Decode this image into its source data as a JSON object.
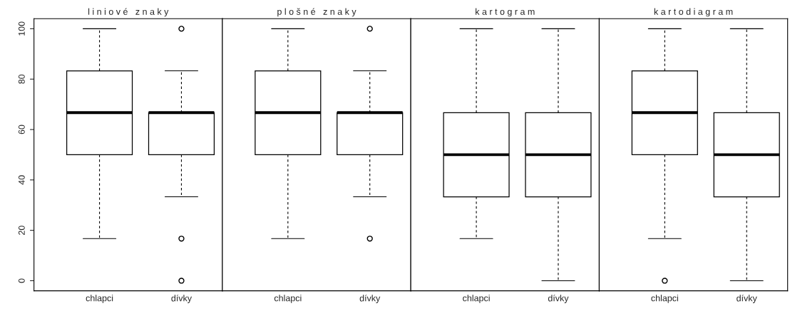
{
  "chart_data": [
    {
      "type": "box",
      "title": "l i n i o v é   z n a k y",
      "categories": [
        "chlapci",
        "dívky"
      ],
      "ylim": [
        -4,
        104
      ],
      "yticks": [
        0,
        20,
        40,
        60,
        80,
        100
      ],
      "boxes": [
        {
          "low": 16.7,
          "q1": 50,
          "median": 66.7,
          "q3": 83.3,
          "high": 100
        },
        {
          "low": 33.3,
          "q1": 50,
          "median": 66.7,
          "q3": 66.7,
          "high": 83.3,
          "outliers": [
            100,
            16.7,
            0
          ]
        }
      ]
    },
    {
      "type": "box",
      "title": "p l o š n é   z n a k y",
      "categories": [
        "chlapci",
        "dívky"
      ],
      "ylim": [
        -4,
        104
      ],
      "yticks": [
        0,
        20,
        40,
        60,
        80,
        100
      ],
      "tick_labels": "x",
      "boxes": [
        {
          "low": 16.7,
          "q1": 50,
          "median": 66.7,
          "q3": 83.3,
          "high": 100
        },
        {
          "low": 33.3,
          "q1": 50,
          "median": 66.7,
          "q3": 66.7,
          "high": 83.3,
          "outliers": [
            100,
            16.7
          ]
        }
      ]
    },
    {
      "type": "box",
      "title": "k a r t o g r a m",
      "categories": [
        "chlapci",
        "dívky"
      ],
      "ylim": [
        -4,
        104
      ],
      "yticks": [
        0,
        20,
        40,
        60,
        80,
        100
      ],
      "tick_labels": "x",
      "boxes": [
        {
          "low": 16.7,
          "q1": 33.3,
          "median": 50,
          "q3": 66.7,
          "high": 100
        },
        {
          "low": 0,
          "q1": 33.3,
          "median": 50,
          "q3": 66.7,
          "high": 100
        }
      ]
    },
    {
      "type": "box",
      "title": "k a r t o d i a g r a m",
      "categories": [
        "chlapci",
        "dívky"
      ],
      "ylim": [
        -4,
        104
      ],
      "yticks": [
        0,
        20,
        40,
        60,
        80,
        100
      ],
      "tick_labels": "x",
      "boxes": [
        {
          "low": 16.7,
          "q1": 50,
          "median": 66.7,
          "q3": 83.3,
          "high": 100,
          "outliers": [
            0
          ]
        },
        {
          "low": 0,
          "q1": 33.3,
          "median": 50,
          "q3": 66.7,
          "high": 100
        }
      ]
    }
  ]
}
